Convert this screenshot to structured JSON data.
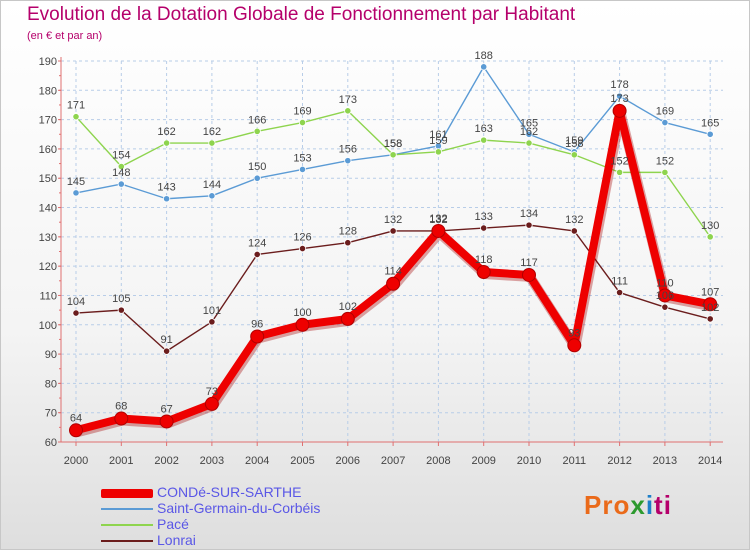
{
  "chart_data": {
    "type": "line",
    "title": "Evolution de la Dotation Globale de Fonctionnement par Habitant",
    "subtitle": "(en € et par an)",
    "xlabel": "",
    "ylabel": "",
    "ylim": [
      60,
      190
    ],
    "ytick_step": 10,
    "categories": [
      "2000",
      "2001",
      "2002",
      "2003",
      "2004",
      "2005",
      "2006",
      "2007",
      "2008",
      "2009",
      "2010",
      "2011",
      "2012",
      "2013",
      "2014"
    ],
    "series": [
      {
        "name": "CONDé-SUR-SARTHE",
        "color": "#ee0000",
        "values": [
          64,
          68,
          67,
          73,
          96,
          100,
          102,
          114,
          132,
          118,
          117,
          93,
          173,
          110,
          107
        ]
      },
      {
        "name": "Saint-Germain-du-Corbéis",
        "color": "#5b9bd5",
        "values": [
          145,
          148,
          143,
          144,
          150,
          153,
          156,
          158,
          161,
          188,
          165,
          159,
          178,
          169,
          165
        ]
      },
      {
        "name": "Pacé",
        "color": "#8ed44e",
        "values": [
          171,
          154,
          162,
          162,
          166,
          169,
          173,
          158,
          159,
          163,
          162,
          158,
          152,
          152,
          130
        ]
      },
      {
        "name": "Lonrai",
        "color": "#6b1d1d",
        "values": [
          104,
          105,
          91,
          101,
          124,
          126,
          128,
          132,
          132,
          133,
          134,
          132,
          111,
          106,
          102
        ]
      }
    ],
    "legend_position": "bottom-left"
  },
  "legend": [
    {
      "label": "CONDé-SUR-SARTHE",
      "color": "#ee0000"
    },
    {
      "label": "Saint-Germain-du-Corbéis",
      "color": "#5b9bd5"
    },
    {
      "label": "Pacé",
      "color": "#8ed44e"
    },
    {
      "label": "Lonrai",
      "color": "#6b1d1d"
    }
  ],
  "logo": {
    "parts": [
      "Pro",
      "x",
      "i",
      "ti"
    ]
  }
}
